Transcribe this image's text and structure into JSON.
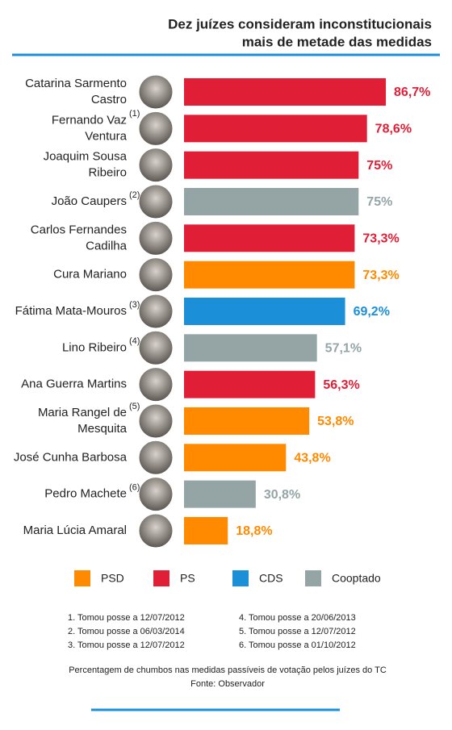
{
  "chart_data": {
    "type": "bar",
    "title": [
      "Dez juízes consideram inconstitucionais",
      "mais de metade das medidas"
    ],
    "categories": [
      [
        "Catarina Sarmento",
        "Castro"
      ],
      [
        "Fernando Vaz",
        "Ventura"
      ],
      [
        "Joaquim Sousa",
        "Ribeiro"
      ],
      [
        "João Caupers"
      ],
      [
        "Carlos Fernandes",
        "Cadilha"
      ],
      [
        "Cura Mariano"
      ],
      [
        "Fátima Mata-Mouros"
      ],
      [
        "Lino Ribeiro"
      ],
      [
        "Ana Guerra Martins"
      ],
      [
        "Maria Rangel de",
        "Mesquita"
      ],
      [
        "José Cunha Barbosa"
      ],
      [
        "Pedro Machete"
      ],
      [
        "Maria Lúcia Amaral"
      ]
    ],
    "notes": [
      null,
      "(1)",
      null,
      "(2)",
      null,
      null,
      "(3)",
      "(4)",
      null,
      "(5)",
      null,
      "(6)",
      null
    ],
    "values": [
      86.7,
      78.6,
      75,
      75,
      73.3,
      73.3,
      69.2,
      57.1,
      56.3,
      53.8,
      43.8,
      30.8,
      18.8
    ],
    "value_labels": [
      "86,7%",
      "78,6%",
      "75%",
      "75%",
      "73,3%",
      "73,3%",
      "69,2%",
      "57,1%",
      "56,3%",
      "53,8%",
      "43,8%",
      "30,8%",
      "18,8%"
    ],
    "party_index": [
      1,
      1,
      1,
      3,
      1,
      0,
      2,
      3,
      1,
      0,
      0,
      3,
      0
    ],
    "legend": [
      {
        "name": "PSD",
        "color": "#ff8a00"
      },
      {
        "name": "PS",
        "color": "#e01f36"
      },
      {
        "name": "CDS",
        "color": "#1b90d8"
      },
      {
        "name": "Cooptado",
        "color": "#95a5a6"
      }
    ],
    "footnotes": [
      "1. Tomou posse a 12/07/2012",
      "2. Tomou posse a 06/03/2014",
      "3. Tomou posse a 12/07/2012",
      "4. Tomou posse a 20/06/2013",
      "5. Tomou posse a 12/07/2012",
      "6. Tomou posse a 01/10/2012"
    ],
    "caption": [
      "Percentagem de chumbos nas medidas passíveis de votação pelos juízes do TC",
      "Fonte: Observador"
    ]
  }
}
